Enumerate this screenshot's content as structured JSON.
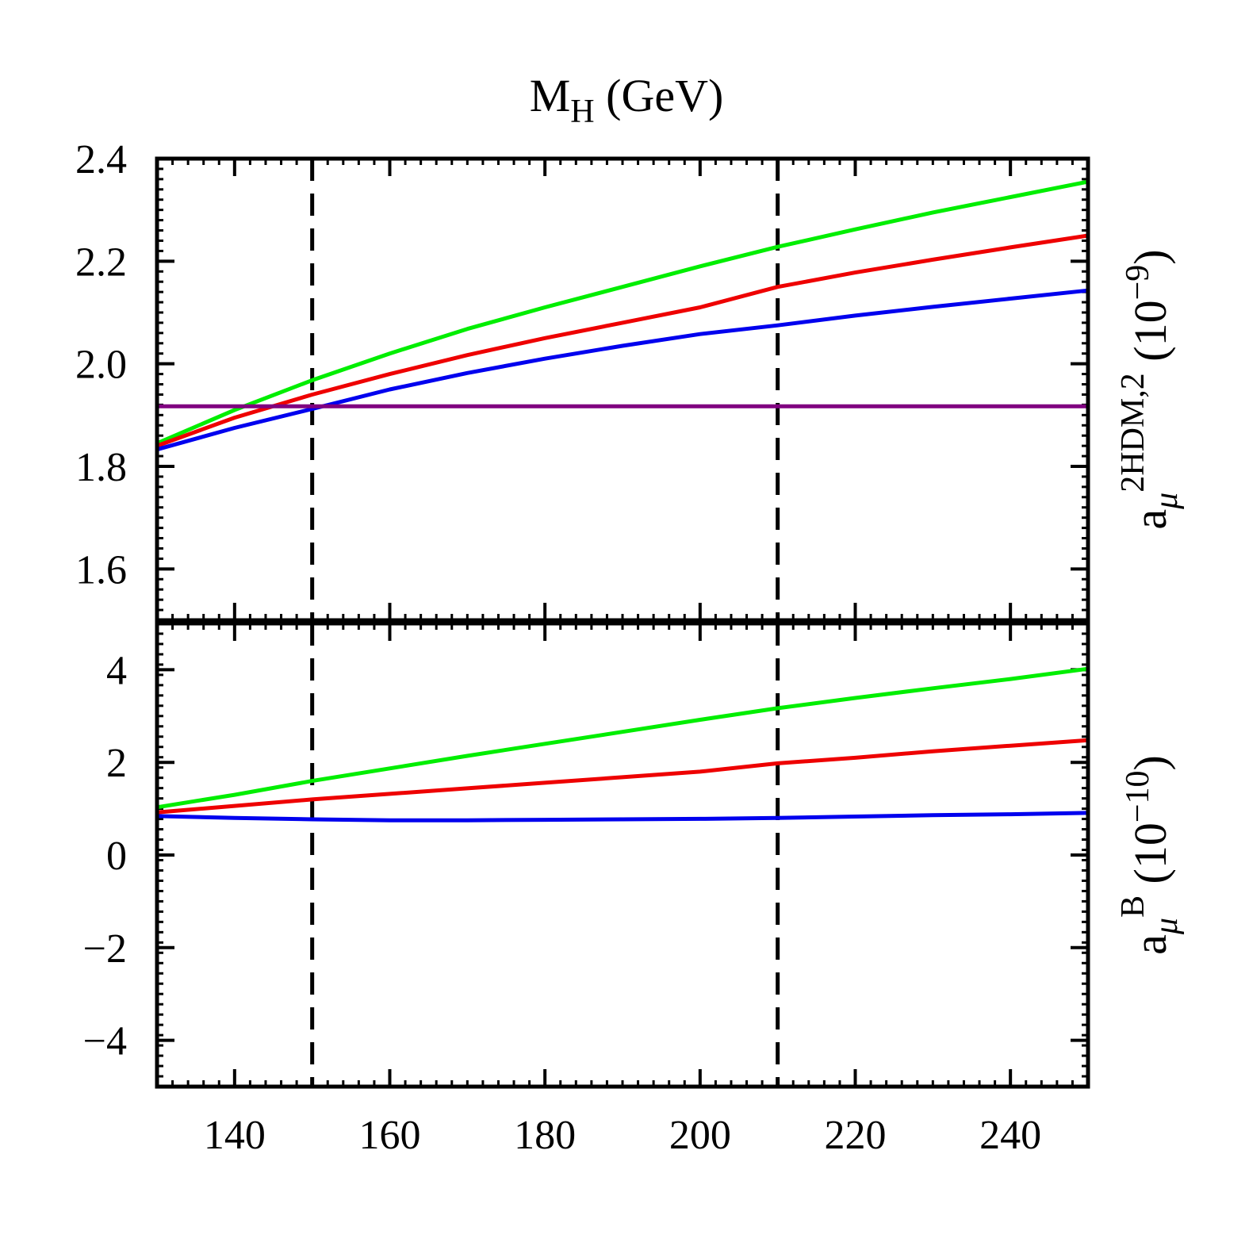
{
  "chart_data": [
    {
      "type": "line",
      "panel": "top",
      "title": "",
      "xlabel_top": "M_H (GeV)",
      "ylabel": "a_μ^{2HDM,2} (10^{−9})",
      "ylabel_parts": {
        "base": "a",
        "sub": "μ",
        "sup": "2HDM,2",
        "unit": "(10",
        "unit_exp": "−9",
        "unit_close": ")"
      },
      "xlim": [
        130,
        250
      ],
      "ylim": [
        1.5,
        2.4
      ],
      "yticks": [
        1.6,
        1.8,
        2.0,
        2.2,
        2.4
      ],
      "ytick_labels": [
        "1.6",
        "1.8",
        "2.0",
        "2.2",
        "2.4"
      ],
      "vlines": [
        150,
        210
      ],
      "x": [
        130,
        140,
        150,
        160,
        170,
        180,
        190,
        200,
        210,
        220,
        230,
        240,
        250
      ],
      "series": [
        {
          "name": "green",
          "color": "#00ee00",
          "values": [
            1.845,
            1.91,
            1.968,
            2.02,
            2.068,
            2.11,
            2.15,
            2.19,
            2.228,
            2.262,
            2.295,
            2.325,
            2.355
          ]
        },
        {
          "name": "red",
          "color": "#ee0000",
          "values": [
            1.84,
            1.895,
            1.94,
            1.98,
            2.017,
            2.05,
            2.08,
            2.11,
            2.15,
            2.178,
            2.203,
            2.227,
            2.25
          ]
        },
        {
          "name": "blue",
          "color": "#0000ee",
          "values": [
            1.833,
            1.875,
            1.912,
            1.95,
            1.982,
            2.01,
            2.035,
            2.058,
            2.075,
            2.094,
            2.111,
            2.127,
            2.143
          ]
        },
        {
          "name": "purple",
          "color": "#800080",
          "values": [
            1.917,
            1.917,
            1.917,
            1.917,
            1.917,
            1.917,
            1.917,
            1.917,
            1.917,
            1.917,
            1.917,
            1.917,
            1.917
          ]
        }
      ]
    },
    {
      "type": "line",
      "panel": "bottom",
      "title": "",
      "xlabel": "",
      "ylabel": "a_μ^B (10^{−10})",
      "ylabel_parts": {
        "base": "a",
        "sub": "μ",
        "sup": "B",
        "unit": "(10",
        "unit_exp": "−10",
        "unit_close": ")"
      },
      "xlim": [
        130,
        250
      ],
      "ylim": [
        -5,
        5
      ],
      "xticks": [
        140,
        160,
        180,
        200,
        220,
        240
      ],
      "xtick_labels": [
        "140",
        "160",
        "180",
        "200",
        "220",
        "240"
      ],
      "yticks": [
        -4,
        -2,
        0,
        2,
        4
      ],
      "ytick_labels": [
        "−4",
        "−2",
        "0",
        "2",
        "4"
      ],
      "vlines": [
        150,
        210
      ],
      "x": [
        130,
        140,
        150,
        160,
        170,
        180,
        190,
        200,
        210,
        220,
        230,
        240,
        250
      ],
      "series": [
        {
          "name": "green",
          "color": "#00ee00",
          "values": [
            1.03,
            1.3,
            1.6,
            1.87,
            2.14,
            2.4,
            2.66,
            2.92,
            3.17,
            3.39,
            3.6,
            3.8,
            4.02
          ]
        },
        {
          "name": "red",
          "color": "#ee0000",
          "values": [
            0.92,
            1.06,
            1.2,
            1.32,
            1.44,
            1.56,
            1.68,
            1.8,
            1.98,
            2.1,
            2.24,
            2.36,
            2.48
          ]
        },
        {
          "name": "blue",
          "color": "#0000ee",
          "values": [
            0.84,
            0.8,
            0.77,
            0.75,
            0.75,
            0.76,
            0.77,
            0.78,
            0.8,
            0.83,
            0.86,
            0.88,
            0.91
          ]
        }
      ]
    }
  ]
}
